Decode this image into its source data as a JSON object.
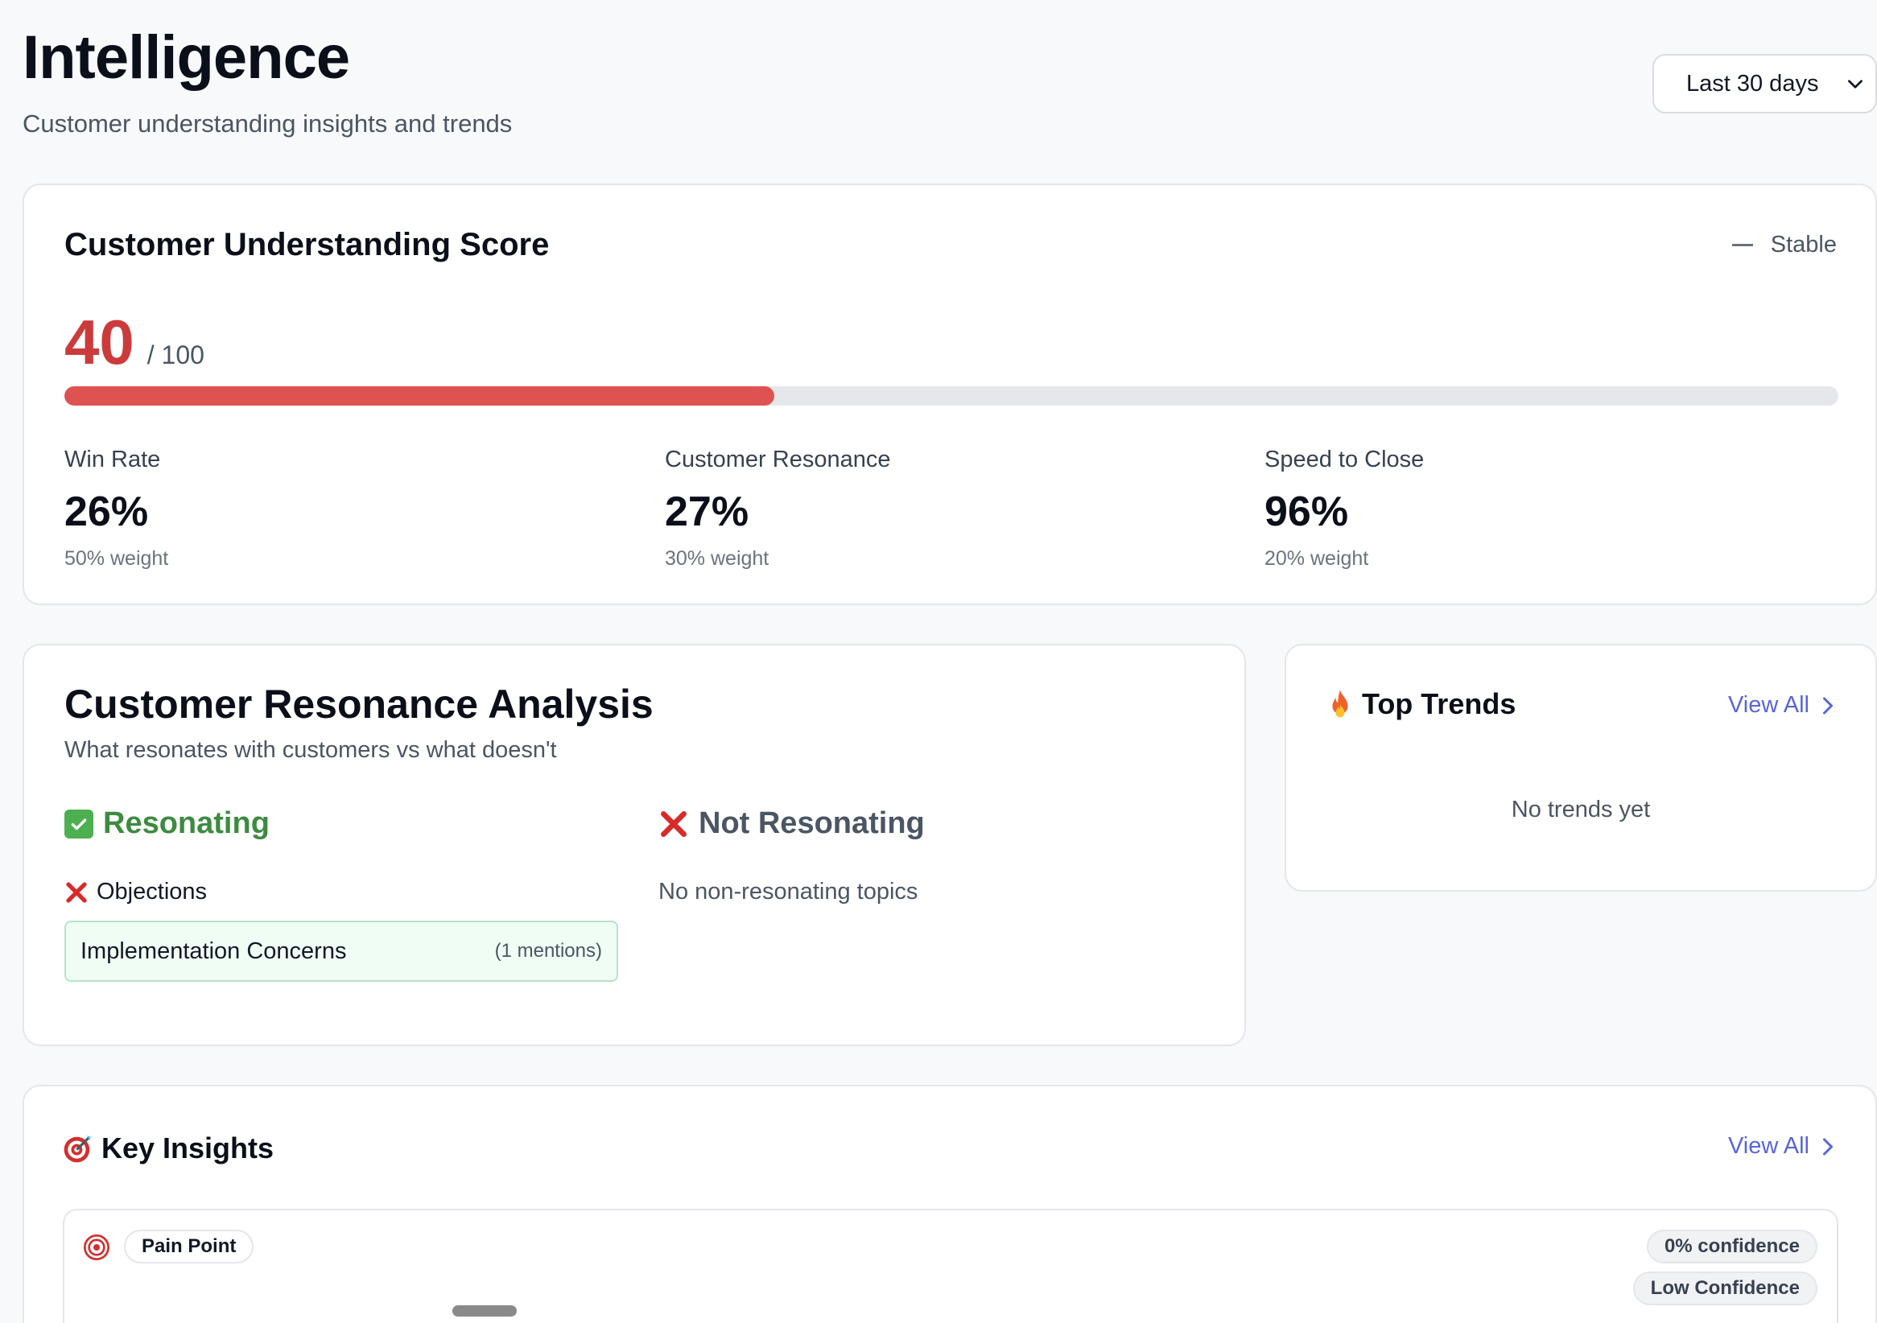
{
  "header": {
    "title": "Intelligence",
    "subtitle": "Customer understanding insights and trends",
    "range_select": {
      "value": "Last 30 days"
    }
  },
  "score_card": {
    "title": "Customer Understanding Score",
    "trend_label": "Stable",
    "score": "40",
    "score_max": "/ 100",
    "score_fraction": 0.4,
    "colors": {
      "score": "#cc3b3b",
      "bar_fill": "#df5252",
      "bar_track": "#e5e7eb"
    },
    "metrics": [
      {
        "label": "Win Rate",
        "value": "26%",
        "weight": "50% weight"
      },
      {
        "label": "Customer Resonance",
        "value": "27%",
        "weight": "30% weight"
      },
      {
        "label": "Speed to Close",
        "value": "96%",
        "weight": "20% weight"
      }
    ]
  },
  "resonance": {
    "title": "Customer Resonance Analysis",
    "subtitle": "What resonates with customers vs what doesn't",
    "resonating": {
      "heading": "Resonating",
      "icon": "check-box-icon",
      "color": "#3d8b40",
      "category": "Objections",
      "category_icon": "x-mark-icon",
      "topics": [
        {
          "name": "Implementation Concerns",
          "mentions": "(1 mentions)"
        }
      ]
    },
    "not_resonating": {
      "heading": "Not Resonating",
      "icon": "x-mark-icon",
      "color": "#4b5563",
      "empty_text": "No non-resonating topics"
    }
  },
  "top_trends": {
    "title": "Top Trends",
    "icon": "fire-icon",
    "view_all": "View All",
    "empty_text": "No trends yet"
  },
  "key_insights": {
    "title": "Key Insights",
    "icon": "dart-target-icon",
    "view_all": "View All",
    "items": [
      {
        "icon": "target-icon",
        "type": "Pain Point",
        "confidence": "0% confidence",
        "confidence_level": "Low Confidence"
      }
    ]
  }
}
